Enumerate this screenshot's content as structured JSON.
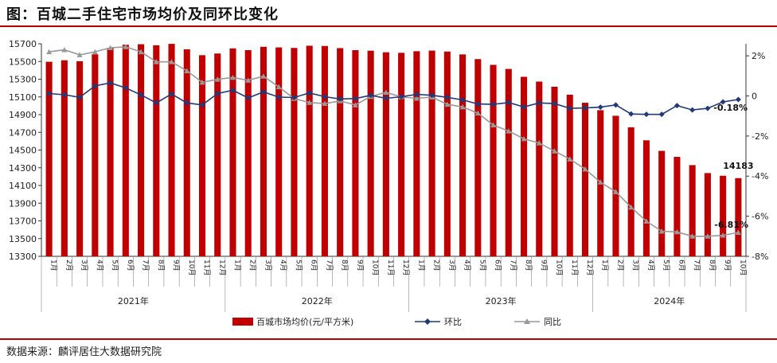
{
  "header": {
    "title": "图：百城二手住宅市场均价及同环比变化"
  },
  "footer": {
    "source": "数据来源：麟评居住大数据研究院"
  },
  "colors": {
    "bar": "#c00000",
    "mom": "#1f3a7a",
    "yoy": "#999999",
    "rule": "#b70000"
  },
  "chart_data": {
    "type": "bar+line",
    "title": "百城二手住宅市场均价及同环比变化",
    "categories": [
      "1月",
      "2月",
      "3月",
      "4月",
      "5月",
      "6月",
      "7月",
      "8月",
      "9月",
      "10月",
      "11月",
      "12月",
      "1月",
      "2月",
      "3月",
      "4月",
      "5月",
      "6月",
      "7月",
      "8月",
      "9月",
      "10月",
      "11月",
      "12月",
      "1月",
      "2月",
      "3月",
      "4月",
      "5月",
      "6月",
      "7月",
      "8月",
      "9月",
      "10月",
      "11月",
      "12月",
      "1月",
      "2月",
      "3月",
      "4月",
      "5月",
      "6月",
      "7月",
      "8月",
      "9月",
      "10月"
    ],
    "years": [
      {
        "label": "2021年",
        "count": 12
      },
      {
        "label": "2022年",
        "count": 12
      },
      {
        "label": "2023年",
        "count": 12
      },
      {
        "label": "2024年",
        "count": 10
      }
    ],
    "left_axis": {
      "ylim": [
        13300,
        15700
      ],
      "ticks": [
        13300,
        13500,
        13700,
        13900,
        14100,
        14300,
        14500,
        14700,
        14900,
        15100,
        15300,
        15500,
        15700
      ]
    },
    "right_axis": {
      "ylim": [
        -8,
        2.6
      ],
      "ticks": [
        "2%",
        "0",
        "-2%",
        "-4%",
        "-6%",
        "-8%"
      ],
      "tick_values": [
        2,
        0,
        -2,
        -4,
        -6,
        -8
      ]
    },
    "series": [
      {
        "name": "百城市场均价(元/平方米)",
        "type": "bar",
        "axis": "left",
        "values": [
          15497,
          15514,
          15503,
          15581,
          15655,
          15689,
          15695,
          15683,
          15699,
          15638,
          15571,
          15590,
          15648,
          15628,
          15666,
          15659,
          15653,
          15678,
          15675,
          15651,
          15628,
          15622,
          15604,
          15598,
          15616,
          15623,
          15612,
          15580,
          15527,
          15462,
          15416,
          15327,
          15273,
          15215,
          15125,
          15034,
          14950,
          14887,
          14757,
          14610,
          14491,
          14423,
          14330,
          14240,
          14210,
          14183
        ]
      },
      {
        "name": "环比",
        "type": "line",
        "axis": "right",
        "values": [
          0.12,
          0.06,
          -0.07,
          0.5,
          0.65,
          0.4,
          0.05,
          -0.35,
          0.1,
          -0.35,
          -0.45,
          0.12,
          0.28,
          -0.1,
          0.2,
          -0.06,
          -0.08,
          0.15,
          -0.04,
          -0.15,
          -0.13,
          0.03,
          -0.12,
          -0.04,
          0.08,
          0.03,
          -0.07,
          -0.2,
          -0.4,
          -0.42,
          -0.33,
          -0.55,
          -0.35,
          -0.38,
          -0.62,
          -0.6,
          -0.56,
          -0.45,
          -0.9,
          -0.92,
          -0.92,
          -0.48,
          -0.7,
          -0.62,
          -0.3,
          -0.18
        ]
      },
      {
        "name": "同比",
        "type": "line",
        "axis": "right",
        "values": [
          2.2,
          2.3,
          2.05,
          2.2,
          2.4,
          2.45,
          2.2,
          1.7,
          1.7,
          1.25,
          0.68,
          0.83,
          0.92,
          0.78,
          0.98,
          0.45,
          -0.13,
          -0.33,
          -0.38,
          -0.25,
          -0.45,
          -0.03,
          0.18,
          -0.05,
          -0.12,
          -0.06,
          -0.42,
          -0.55,
          -0.86,
          -1.45,
          -1.75,
          -2.14,
          -2.35,
          -2.75,
          -3.15,
          -3.65,
          -4.3,
          -4.78,
          -5.55,
          -6.25,
          -6.75,
          -6.78,
          -7.0,
          -7.0,
          -6.95,
          -6.81
        ]
      }
    ],
    "annotations": {
      "last_bar_label": "14183",
      "last_mom_label": "-0.18%",
      "last_yoy_label": "-6.81%"
    },
    "legend": {
      "placement": "bottom",
      "items": [
        "百城市场均价(元/平方米)",
        "环比",
        "同比"
      ]
    }
  }
}
